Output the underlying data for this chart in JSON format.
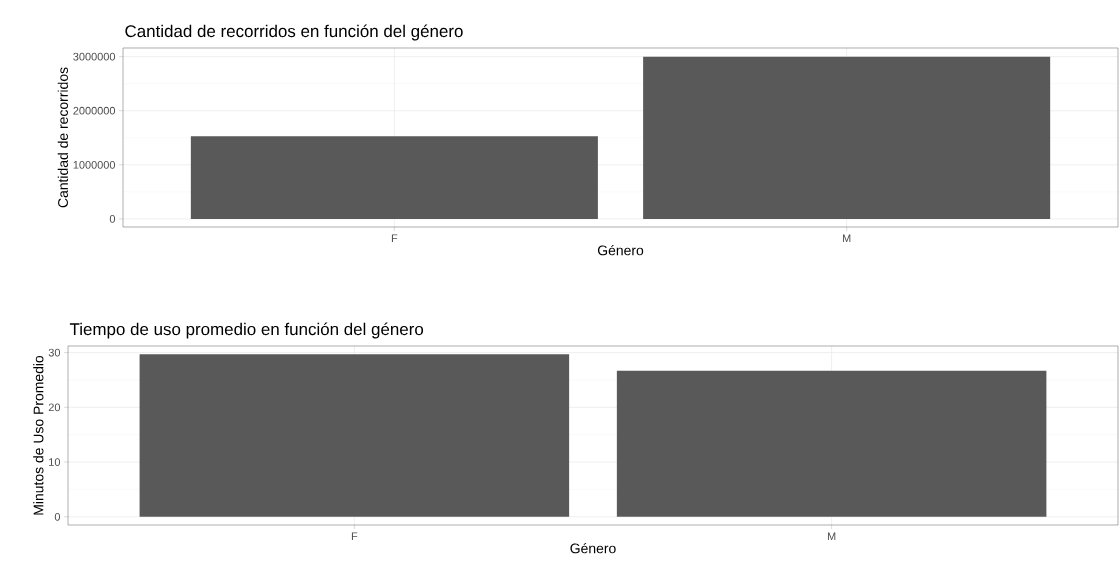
{
  "chart_data": [
    {
      "type": "bar",
      "title": "Cantidad de recorridos en función del género",
      "xlabel": "Género",
      "ylabel": "Cantidad de recorridos",
      "categories": [
        "F",
        "M"
      ],
      "values": [
        1530000,
        3000000
      ],
      "color": "#595959",
      "ylim": [
        -150000,
        3160000
      ],
      "yticks": [
        0,
        1000000,
        2000000,
        3000000
      ],
      "grid": true
    },
    {
      "type": "bar",
      "title": "Tiempo de uso promedio en función del género",
      "xlabel": "Género",
      "ylabel": "Minutos de Uso Promedio",
      "categories": [
        "F",
        "M"
      ],
      "values": [
        29.7,
        26.7
      ],
      "color": "#595959",
      "ylim": [
        -1.5,
        31.2
      ],
      "yticks": [
        0,
        10,
        20,
        30
      ],
      "grid": true
    }
  ]
}
